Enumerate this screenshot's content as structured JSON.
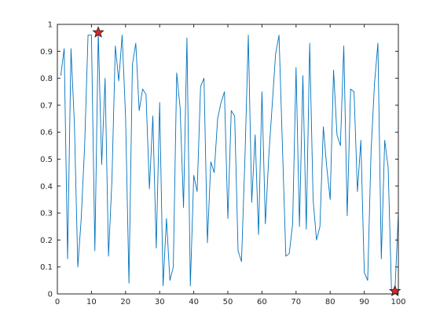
{
  "chart_data": {
    "type": "line",
    "title": "",
    "xlabel": "",
    "ylabel": "",
    "xlim": [
      0,
      100
    ],
    "ylim": [
      0,
      1
    ],
    "grid": false,
    "legend": "none",
    "x_ticks": [
      0,
      10,
      20,
      30,
      40,
      50,
      60,
      70,
      80,
      90,
      100
    ],
    "x_tick_labels": [
      "0",
      "10",
      "20",
      "30",
      "40",
      "50",
      "60",
      "70",
      "80",
      "90",
      "100"
    ],
    "y_ticks": [
      0,
      0.1,
      0.2,
      0.3,
      0.4,
      0.5,
      0.6,
      0.7,
      0.8,
      0.9,
      1
    ],
    "y_tick_labels": [
      "0",
      "0.1",
      "0.2",
      "0.3",
      "0.4",
      "0.5",
      "0.6",
      "0.7",
      "0.8",
      "0.9",
      "1"
    ],
    "line_color": "#0072BD",
    "marker_face_color": "#d62728",
    "marker_edge_color": "#1f1f1f",
    "series": [
      {
        "x": [
          1,
          2,
          3,
          4,
          5,
          6,
          7,
          8,
          9,
          10,
          11,
          12,
          13,
          14,
          15,
          16,
          17,
          18,
          19,
          20,
          21,
          22,
          23,
          24,
          25,
          26,
          27,
          28,
          29,
          30,
          31,
          32,
          33,
          34,
          35,
          36,
          37,
          38,
          39,
          40,
          41,
          42,
          43,
          44,
          45,
          46,
          47,
          48,
          49,
          50,
          51,
          52,
          53,
          54,
          55,
          56,
          57,
          58,
          59,
          60,
          61,
          62,
          63,
          64,
          65,
          66,
          67,
          68,
          69,
          70,
          71,
          72,
          73,
          74,
          75,
          76,
          77,
          78,
          79,
          80,
          81,
          82,
          83,
          84,
          85,
          86,
          87,
          88,
          89,
          90,
          91,
          92,
          93,
          94,
          95,
          96,
          97,
          98,
          99,
          100
        ],
        "y": [
          0.81,
          0.91,
          0.13,
          0.91,
          0.63,
          0.1,
          0.28,
          0.55,
          0.96,
          0.96,
          0.16,
          0.97,
          0.48,
          0.8,
          0.14,
          0.42,
          0.92,
          0.79,
          0.96,
          0.66,
          0.04,
          0.85,
          0.93,
          0.68,
          0.76,
          0.74,
          0.39,
          0.66,
          0.17,
          0.71,
          0.03,
          0.28,
          0.05,
          0.1,
          0.82,
          0.69,
          0.32,
          0.95,
          0.03,
          0.44,
          0.38,
          0.77,
          0.8,
          0.19,
          0.49,
          0.45,
          0.65,
          0.71,
          0.75,
          0.28,
          0.68,
          0.66,
          0.16,
          0.12,
          0.5,
          0.96,
          0.34,
          0.59,
          0.22,
          0.75,
          0.26,
          0.51,
          0.7,
          0.89,
          0.96,
          0.55,
          0.14,
          0.15,
          0.26,
          0.84,
          0.25,
          0.81,
          0.24,
          0.93,
          0.35,
          0.2,
          0.25,
          0.62,
          0.47,
          0.35,
          0.83,
          0.59,
          0.55,
          0.92,
          0.29,
          0.76,
          0.75,
          0.38,
          0.57,
          0.08,
          0.05,
          0.53,
          0.78,
          0.93,
          0.13,
          0.57,
          0.47,
          0.01,
          0.01,
          0.3
        ]
      }
    ],
    "highlighted_points": [
      {
        "x": 12,
        "y": 0.97
      },
      {
        "x": 99,
        "y": 0.01
      }
    ]
  }
}
